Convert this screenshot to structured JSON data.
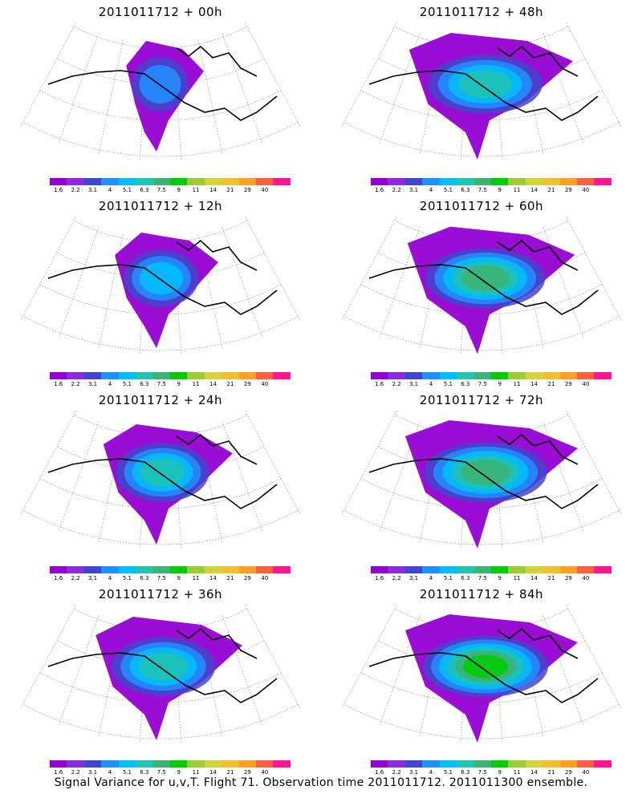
{
  "panels": [
    {
      "title": "2011011712 + 00h",
      "intensity": 0.25,
      "spread": 0.45
    },
    {
      "title": "2011011712 + 48h",
      "intensity": 0.55,
      "spread": 0.95
    },
    {
      "title": "2011011712 + 12h",
      "intensity": 0.35,
      "spread": 0.6
    },
    {
      "title": "2011011712 + 60h",
      "intensity": 0.6,
      "spread": 0.97
    },
    {
      "title": "2011011712 + 24h",
      "intensity": 0.45,
      "spread": 0.75
    },
    {
      "title": "2011011712 + 72h",
      "intensity": 0.65,
      "spread": 1.0
    },
    {
      "title": "2011011712 + 36h",
      "intensity": 0.5,
      "spread": 0.85
    },
    {
      "title": "2011011712 + 84h",
      "intensity": 0.7,
      "spread": 1.0
    }
  ],
  "colorbar": {
    "labels": [
      "1.6",
      "2.2",
      "3.1",
      "4",
      "5.1",
      "6.3",
      "7.5",
      "9",
      "11",
      "14",
      "21",
      "29",
      "40"
    ],
    "colors": [
      "#9400d3",
      "#8a2be2",
      "#3f48cc",
      "#1e90ff",
      "#00bfff",
      "#20c4b0",
      "#3cb371",
      "#00cd00",
      "#9acd32",
      "#d4d43a",
      "#f0c030",
      "#ffa020",
      "#ff6040",
      "#ff1493"
    ]
  },
  "footer": "Signal Variance for u,v,T. Flight 71. Observation time 2011011712. 2011011300 ensemble."
}
